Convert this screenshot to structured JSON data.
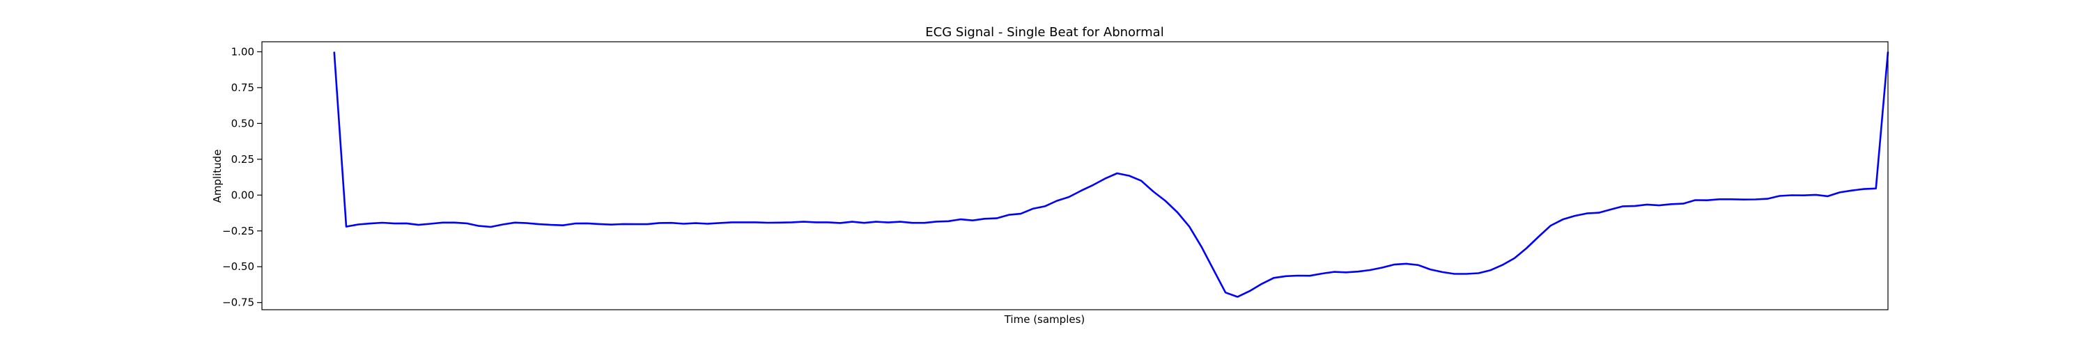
{
  "chart_data": {
    "type": "line",
    "title": "ECG Signal - Single Beat for Abnormal",
    "xlabel": "Time (samples)",
    "ylabel": "Amplitude",
    "ylim": [
      -0.8,
      1.07
    ],
    "xlim": [
      -6,
      129
    ],
    "yticks": [
      1.0,
      0.75,
      0.5,
      0.25,
      0.0,
      -0.25,
      -0.5,
      -0.75
    ],
    "ytick_labels": [
      "1.00",
      "0.75",
      "0.50",
      "0.25",
      "0.00",
      "−0.25",
      "−0.50",
      "−0.75"
    ],
    "grid": false,
    "series": [
      {
        "color": "#0000ff",
        "values": [
          1.0,
          -0.22,
          -0.205,
          -0.198,
          -0.193,
          -0.198,
          -0.197,
          -0.208,
          -0.2,
          -0.192,
          -0.192,
          -0.197,
          -0.215,
          -0.222,
          -0.205,
          -0.192,
          -0.196,
          -0.203,
          -0.208,
          -0.211,
          -0.198,
          -0.197,
          -0.202,
          -0.206,
          -0.202,
          -0.203,
          -0.203,
          -0.195,
          -0.194,
          -0.2,
          -0.196,
          -0.2,
          -0.195,
          -0.19,
          -0.19,
          -0.19,
          -0.193,
          -0.192,
          -0.19,
          -0.186,
          -0.19,
          -0.19,
          -0.195,
          -0.186,
          -0.194,
          -0.186,
          -0.191,
          -0.186,
          -0.194,
          -0.194,
          -0.185,
          -0.182,
          -0.169,
          -0.177,
          -0.165,
          -0.162,
          -0.138,
          -0.13,
          -0.095,
          -0.078,
          -0.04,
          -0.013,
          0.03,
          0.07,
          0.115,
          0.152,
          0.135,
          0.1,
          0.025,
          -0.04,
          -0.12,
          -0.22,
          -0.36,
          -0.52,
          -0.68,
          -0.71,
          -0.67,
          -0.62,
          -0.578,
          -0.566,
          -0.562,
          -0.563,
          -0.548,
          -0.536,
          -0.539,
          -0.534,
          -0.523,
          -0.506,
          -0.485,
          -0.479,
          -0.488,
          -0.519,
          -0.537,
          -0.55,
          -0.55,
          -0.545,
          -0.524,
          -0.487,
          -0.44,
          -0.37,
          -0.29,
          -0.213,
          -0.17,
          -0.145,
          -0.128,
          -0.123,
          -0.1,
          -0.078,
          -0.076,
          -0.066,
          -0.072,
          -0.063,
          -0.06,
          -0.035,
          -0.036,
          -0.029,
          -0.029,
          -0.031,
          -0.03,
          -0.026,
          -0.006,
          -0.001,
          -0.002,
          0.002,
          -0.008,
          0.019,
          0.032,
          0.042,
          0.046,
          1.0
        ]
      }
    ]
  }
}
